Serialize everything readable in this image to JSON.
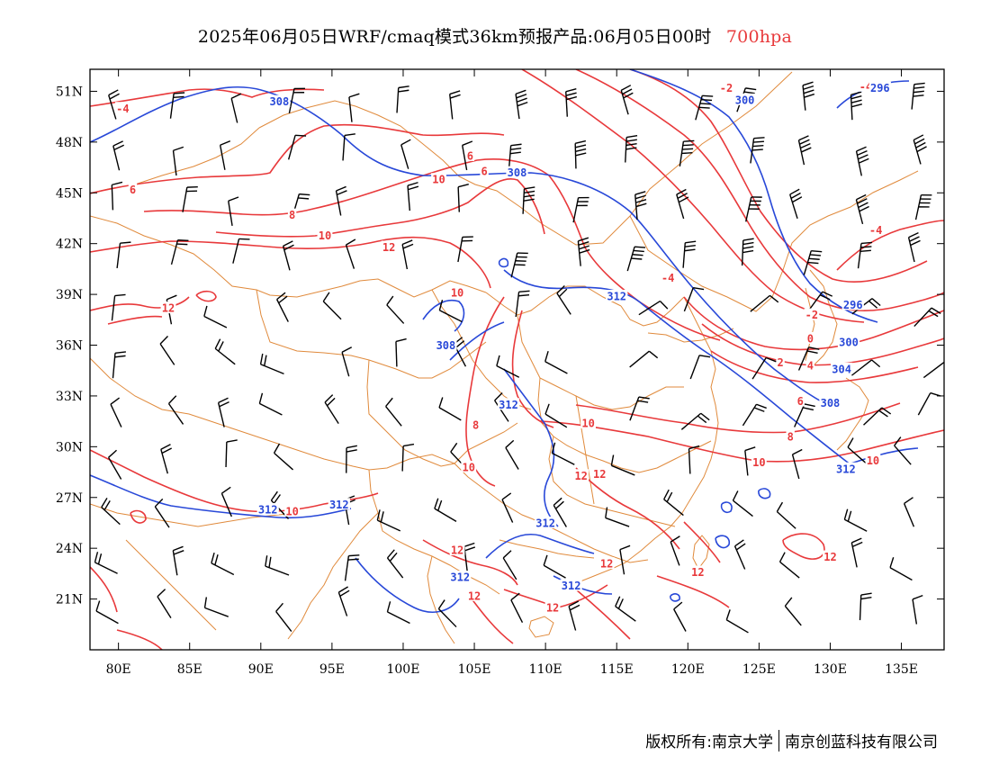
{
  "title": {
    "main": "2025年06月05日WRF/cmaq模式36km预报产品:06月05日00时",
    "level": "700hpa"
  },
  "footer": {
    "copyright": "版权所有:南京大学",
    "company": "南京创蓝科技有限公司"
  },
  "colors": {
    "temperature": "#e8393b",
    "height": "#2848d8",
    "boundary": "#e08a3c",
    "wind": "#000000"
  },
  "axes": {
    "lon": {
      "range": [
        78,
        138
      ],
      "ticks": [
        80,
        85,
        90,
        95,
        100,
        105,
        110,
        115,
        120,
        125,
        130,
        135
      ],
      "labels": [
        "80E",
        "85E",
        "90E",
        "95E",
        "100E",
        "105E",
        "110E",
        "115E",
        "120E",
        "125E",
        "130E",
        "135E"
      ]
    },
    "lat": {
      "range": [
        18,
        52.3
      ],
      "ticks": [
        21,
        24,
        27,
        30,
        33,
        36,
        39,
        42,
        45,
        48,
        51
      ],
      "labels": [
        "21N",
        "24N",
        "27N",
        "30N",
        "33N",
        "36N",
        "39N",
        "42N",
        "45N",
        "48N",
        "51N"
      ]
    }
  },
  "temperature_labels": [
    {
      "text": "-2",
      "lon": 122.7,
      "lat": 51.2
    },
    {
      "text": "-4",
      "lon": 132.5,
      "lat": 51.3
    },
    {
      "text": "-4",
      "lon": 80.3,
      "lat": 50.0
    },
    {
      "text": "6",
      "lon": 104.7,
      "lat": 47.2
    },
    {
      "text": "6",
      "lon": 105.7,
      "lat": 46.3
    },
    {
      "text": "6",
      "lon": 81.0,
      "lat": 45.2
    },
    {
      "text": "8",
      "lon": 92.2,
      "lat": 43.7
    },
    {
      "text": "10",
      "lon": 102.5,
      "lat": 45.8
    },
    {
      "text": "10",
      "lon": 94.5,
      "lat": 42.5
    },
    {
      "text": "12",
      "lon": 99.0,
      "lat": 41.8
    },
    {
      "text": "10",
      "lon": 103.8,
      "lat": 39.1
    },
    {
      "text": "12",
      "lon": 83.5,
      "lat": 38.2
    },
    {
      "text": "-4",
      "lon": 118.6,
      "lat": 40.0
    },
    {
      "text": "-4",
      "lon": 133.2,
      "lat": 42.8
    },
    {
      "text": "-2",
      "lon": 128.7,
      "lat": 37.8
    },
    {
      "text": "0",
      "lon": 128.6,
      "lat": 36.4
    },
    {
      "text": "2",
      "lon": 126.5,
      "lat": 35.0
    },
    {
      "text": "4",
      "lon": 128.6,
      "lat": 34.8
    },
    {
      "text": "6",
      "lon": 127.9,
      "lat": 32.7
    },
    {
      "text": "8",
      "lon": 127.2,
      "lat": 30.6
    },
    {
      "text": "10",
      "lon": 113.0,
      "lat": 31.4
    },
    {
      "text": "8",
      "lon": 105.1,
      "lat": 31.3
    },
    {
      "text": "10",
      "lon": 125.0,
      "lat": 29.1
    },
    {
      "text": "10",
      "lon": 104.6,
      "lat": 28.8
    },
    {
      "text": "10",
      "lon": 133.0,
      "lat": 29.2
    },
    {
      "text": "12",
      "lon": 112.5,
      "lat": 28.3
    },
    {
      "text": "12",
      "lon": 113.8,
      "lat": 28.4
    },
    {
      "text": "10",
      "lon": 92.2,
      "lat": 26.2
    },
    {
      "text": "12",
      "lon": 103.8,
      "lat": 23.9
    },
    {
      "text": "12",
      "lon": 114.3,
      "lat": 23.1
    },
    {
      "text": "12",
      "lon": 120.7,
      "lat": 22.6
    },
    {
      "text": "12",
      "lon": 130.0,
      "lat": 23.5
    },
    {
      "text": "12",
      "lon": 105.0,
      "lat": 21.2
    },
    {
      "text": "12",
      "lon": 110.5,
      "lat": 20.5
    }
  ],
  "height_labels": [
    {
      "text": "308",
      "lon": 91.3,
      "lat": 50.4
    },
    {
      "text": "300",
      "lon": 124.0,
      "lat": 50.5
    },
    {
      "text": "296",
      "lon": 133.5,
      "lat": 51.2
    },
    {
      "text": "308",
      "lon": 108.0,
      "lat": 46.2
    },
    {
      "text": "312",
      "lon": 115.0,
      "lat": 38.9
    },
    {
      "text": "296",
      "lon": 131.6,
      "lat": 38.4
    },
    {
      "text": "308",
      "lon": 103.0,
      "lat": 36.0
    },
    {
      "text": "300",
      "lon": 131.3,
      "lat": 36.2
    },
    {
      "text": "304",
      "lon": 130.8,
      "lat": 34.6
    },
    {
      "text": "308",
      "lon": 130.0,
      "lat": 32.6
    },
    {
      "text": "312",
      "lon": 107.4,
      "lat": 32.5
    },
    {
      "text": "312",
      "lon": 131.1,
      "lat": 28.7
    },
    {
      "text": "312",
      "lon": 90.5,
      "lat": 26.3
    },
    {
      "text": "312",
      "lon": 95.5,
      "lat": 26.6
    },
    {
      "text": "312",
      "lon": 110.0,
      "lat": 25.5
    },
    {
      "text": "312",
      "lon": 104.0,
      "lat": 22.3
    },
    {
      "text": "312",
      "lon": 111.8,
      "lat": 21.8
    }
  ]
}
